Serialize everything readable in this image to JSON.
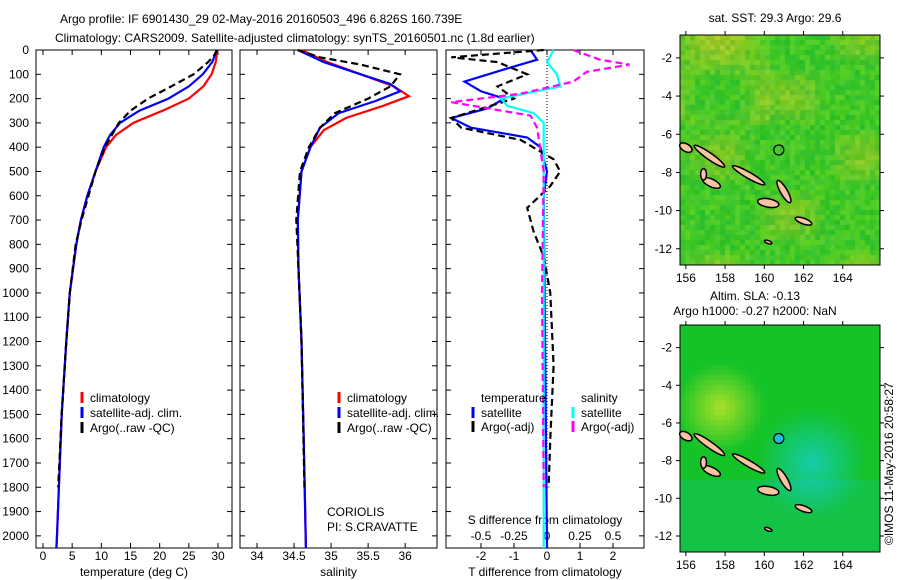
{
  "title": {
    "line1": "Argo profile: IF 6901430_29 02-May-2016 20160503_496 6.826S 160.739E",
    "line2": "Climatology: CARS2009. Satellite-adjusted climatology: synTS_20160501.nc (1.8d earlier)"
  },
  "colors": {
    "clim": "#ff0000",
    "sat": "#0000ff",
    "argo": "#000000",
    "sal_sat": "#00ffff",
    "sal_argo": "#ff00ff",
    "land": "#f7c59f"
  },
  "chart_data": [
    {
      "type": "line",
      "name": "temperature",
      "xlabel": "temperature (deg C)",
      "xlim": [
        -1.2,
        32.4
      ],
      "ylim": [
        2050,
        0
      ],
      "xticks": [
        0,
        5,
        10,
        15,
        20,
        25,
        30
      ],
      "xticklabels": [
        "0",
        "5",
        "10",
        "15",
        "20",
        "25",
        "30"
      ],
      "yticks": [
        0,
        100,
        200,
        300,
        400,
        500,
        600,
        700,
        800,
        900,
        1000,
        1100,
        1200,
        1300,
        1400,
        1500,
        1600,
        1700,
        1800,
        1900,
        2000
      ],
      "yticklabels": [
        "0",
        "100",
        "200",
        "300",
        "400",
        "500",
        "600",
        "700",
        "800",
        "900",
        "1000",
        "1100",
        "1200",
        "1300",
        "1400",
        "1500",
        "1600",
        "1700",
        "1800",
        "1900",
        "2000"
      ],
      "legend": [
        "climatology",
        "satellite-adj. clim.",
        "Argo(..raw -QC)"
      ],
      "series": [
        {
          "name": "climatology",
          "color": "#ff0000",
          "dash": false,
          "depth": [
            0,
            50,
            100,
            150,
            200,
            250,
            300,
            350,
            400,
            500,
            600,
            700,
            800,
            1000,
            1200,
            1500,
            2000,
            2050
          ],
          "values": [
            29.9,
            29.6,
            28.9,
            27.5,
            25,
            20.5,
            15.5,
            12.5,
            10.8,
            9,
            7.6,
            6.5,
            5.7,
            4.6,
            4.0,
            3.2,
            2.4,
            2.3
          ]
        },
        {
          "name": "satellite-adj. clim.",
          "color": "#0000ff",
          "dash": false,
          "depth": [
            0,
            50,
            100,
            150,
            200,
            250,
            300,
            350,
            400,
            500,
            600,
            700,
            800,
            1000,
            1200,
            1500,
            2000,
            2050
          ],
          "values": [
            29.8,
            29,
            27.4,
            25,
            21.5,
            16.5,
            13.2,
            11.5,
            10.4,
            9,
            7.6,
            6.5,
            5.7,
            4.6,
            4.0,
            3.2,
            2.4,
            2.3
          ]
        },
        {
          "name": "Argo(..raw -QC)",
          "color": "#000000",
          "dash": true,
          "depth": [
            0,
            20,
            50,
            100,
            150,
            200,
            250,
            300,
            400,
            500,
            600,
            700,
            800,
            1000,
            1200,
            1500,
            1800
          ],
          "values": [
            29.8,
            29.4,
            28.3,
            25.8,
            22,
            18,
            15,
            13,
            10.6,
            9,
            7.8,
            6.6,
            5.6,
            4.6,
            4.0,
            3.2,
            2.6
          ]
        }
      ]
    },
    {
      "type": "line",
      "name": "salinity",
      "xlabel": "salinity",
      "xlim": [
        33.77,
        36.43
      ],
      "ylim": [
        2050,
        0
      ],
      "xticks": [
        34,
        34.5,
        35,
        35.5,
        36
      ],
      "xticklabels": [
        "34",
        "34.5",
        "35",
        "35.5",
        "36"
      ],
      "legend": [
        "climatology",
        "satellite-adj. clim.",
        "Argo(..raw -QC)"
      ],
      "annotation": [
        "CORIOLIS",
        "PI: S.CRAVATTE"
      ],
      "series": [
        {
          "name": "climatology",
          "color": "#ff0000",
          "dash": false,
          "depth": [
            0,
            50,
            100,
            150,
            190,
            230,
            280,
            330,
            400,
            500,
            700,
            900,
            1200,
            1600,
            2050
          ],
          "values": [
            34.6,
            34.95,
            35.4,
            35.85,
            36.05,
            35.7,
            35.2,
            34.9,
            34.72,
            34.6,
            34.55,
            34.56,
            34.6,
            34.63,
            34.66
          ]
        },
        {
          "name": "satellite-adj. clim.",
          "color": "#0000ff",
          "dash": false,
          "depth": [
            0,
            50,
            100,
            140,
            170,
            210,
            260,
            320,
            400,
            500,
            700,
            900,
            1200,
            1600,
            2050
          ],
          "values": [
            34.55,
            34.9,
            35.4,
            35.8,
            35.93,
            35.6,
            35.1,
            34.85,
            34.72,
            34.6,
            34.55,
            34.56,
            34.6,
            34.63,
            34.66
          ]
        },
        {
          "name": "Argo(..raw -QC)",
          "color": "#000000",
          "dash": true,
          "depth": [
            0,
            30,
            60,
            100,
            150,
            200,
            260,
            320,
            400,
            500,
            700,
            900,
            1200,
            1500,
            1800
          ],
          "values": [
            34.55,
            34.85,
            35.4,
            35.93,
            35.8,
            35.5,
            35.05,
            34.85,
            34.7,
            34.58,
            34.53,
            34.56,
            34.6,
            34.62,
            34.64
          ]
        }
      ]
    },
    {
      "type": "line",
      "name": "difference",
      "xlabel": "T difference from climatology",
      "s_label": "S difference from climatology",
      "xlim": [
        -3.06,
        2.94
      ],
      "ylim": [
        2050,
        0
      ],
      "xticks": [
        -2,
        -1,
        0,
        1,
        2
      ],
      "xticklabels": [
        "-2",
        "-1",
        "0",
        "1",
        "2"
      ],
      "s_ticks": [
        -0.5,
        -0.25,
        0,
        0.25,
        0.5
      ],
      "s_ticklabels": [
        "-0.5",
        "-0.25",
        "0",
        "0.25",
        "0.5"
      ],
      "legend": {
        "temperature_title": "temperature",
        "salinity_title": "salinity",
        "items": [
          "satellite",
          "Argo(-adj)",
          "satellite",
          "Argo(-adj)"
        ]
      },
      "series": [
        {
          "name": "temperature satellite",
          "color": "#0000ff",
          "dash": false,
          "units": "T",
          "depth": [
            0,
            40,
            80,
            130,
            170,
            200,
            240,
            280,
            320,
            360,
            400,
            500,
            600,
            2050
          ],
          "values": [
            -0.5,
            -0.3,
            -1.3,
            -2.5,
            -2.0,
            -1.3,
            -1.8,
            -2.9,
            -2.3,
            -0.6,
            -0.2,
            0,
            -0.1,
            0
          ]
        },
        {
          "name": "temperature Argo(-adj)",
          "color": "#000000",
          "dash": true,
          "units": "T",
          "depth": [
            0,
            30,
            50,
            100,
            150,
            200,
            280,
            320,
            370,
            450,
            500,
            560,
            650,
            750,
            850,
            1000,
            1300,
            1600,
            1800
          ],
          "values": [
            -0.1,
            -2.9,
            -1.5,
            -0.6,
            -1.5,
            -1.0,
            -2.9,
            -2.6,
            -0.8,
            0.2,
            0.4,
            0.1,
            -0.6,
            -0.4,
            -0.1,
            0.1,
            0.2,
            0.1,
            0.05
          ]
        },
        {
          "name": "salinity satellite",
          "color": "#00ffff",
          "dash": false,
          "units": "T",
          "depth": [
            0,
            50,
            100,
            150,
            200,
            230,
            260,
            300,
            400,
            600,
            2050
          ],
          "values": [
            0.2,
            0,
            0.3,
            0.4,
            -1.4,
            -1.2,
            -0.4,
            -0.1,
            -0.1,
            -0.1,
            -0.1
          ]
        },
        {
          "name": "salinity Argo(-adj)",
          "color": "#ff00ff",
          "dash": true,
          "units": "T",
          "depth": [
            0,
            40,
            60,
            90,
            130,
            180,
            215,
            240,
            270,
            320,
            500,
            1000,
            1800
          ],
          "values": [
            0.8,
            1.6,
            2.5,
            1.2,
            0.8,
            -0.8,
            -2.9,
            -1.8,
            -0.5,
            -0.3,
            -0.1,
            -0.15,
            -0.1
          ]
        }
      ]
    }
  ],
  "maps": [
    {
      "name": "sst-map",
      "title": [
        "sat. SST: 29.3 Argo: 29.6"
      ],
      "lonlim": [
        155.7,
        165.9
      ],
      "latlim": [
        -12.85,
        -0.8
      ],
      "lonticks": [
        "156",
        "158",
        "160",
        "162",
        "164"
      ],
      "latticks": [
        "-2",
        "-4",
        "-6",
        "-8",
        "-10",
        "-12"
      ],
      "marker": [
        160.739,
        -6.826
      ],
      "marker_color": "none"
    },
    {
      "name": "sla-map",
      "title": [
        "Altim. SLA: -0.13",
        "Argo h1000: -0.27 h2000: NaN"
      ],
      "lonlim": [
        155.7,
        165.9
      ],
      "latlim": [
        -12.85,
        -0.8
      ],
      "lonticks": [
        "156",
        "158",
        "160",
        "162",
        "164"
      ],
      "latticks": [
        "-2",
        "-4",
        "-6",
        "-8",
        "-10",
        "-12"
      ],
      "marker": [
        160.739,
        -6.826
      ],
      "marker_color": "#22bbdd"
    }
  ],
  "credit": "©IMOS 11-May-2016 20:58:27"
}
